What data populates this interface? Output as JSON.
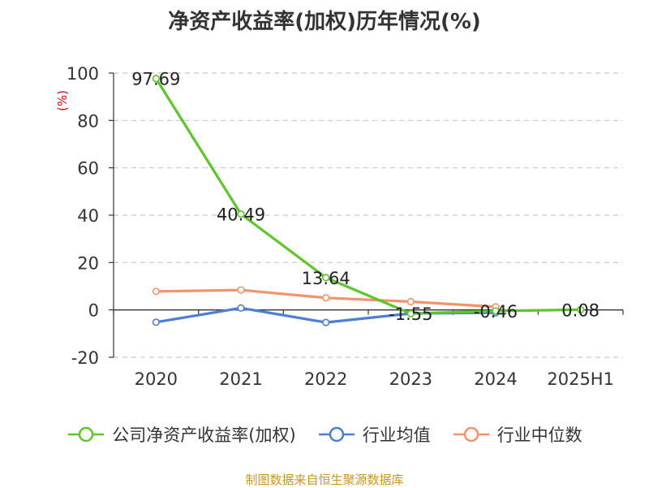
{
  "title": "净资产收益率(加权)历年情况(%)",
  "source_note": "制图数据来自恒生聚源数据库",
  "chart_data": {
    "type": "line",
    "title": "净资产收益率(加权)历年情况(%)",
    "ylabel": "(%)",
    "xlabel": "",
    "categories": [
      "2020",
      "2021",
      "2022",
      "2023",
      "2024",
      "2025H1"
    ],
    "ylim": [
      -20,
      100
    ],
    "yticks": [
      -20,
      0,
      20,
      40,
      60,
      80,
      100
    ],
    "ytick_labels": [
      "-20",
      "0",
      "20",
      "40",
      "60",
      "80",
      "100"
    ],
    "grid": true,
    "legend_position": "bottom",
    "series": [
      {
        "name": "公司净资产收益率(加权)",
        "color": "#5dc629",
        "values": [
          97.69,
          40.49,
          13.64,
          -1.55,
          -0.46,
          0.08
        ],
        "data_labels": [
          "97.69",
          "40.49",
          "13.64",
          "-1.55",
          "-0.46",
          "0.08"
        ]
      },
      {
        "name": "行业均值",
        "color": "#4a7fd4",
        "values": [
          -5.2,
          0.8,
          -5.3,
          -1.5,
          -1.2,
          null
        ]
      },
      {
        "name": "行业中位数",
        "color": "#f4926a",
        "values": [
          7.8,
          8.4,
          5.1,
          3.5,
          1.3,
          null
        ]
      }
    ]
  }
}
